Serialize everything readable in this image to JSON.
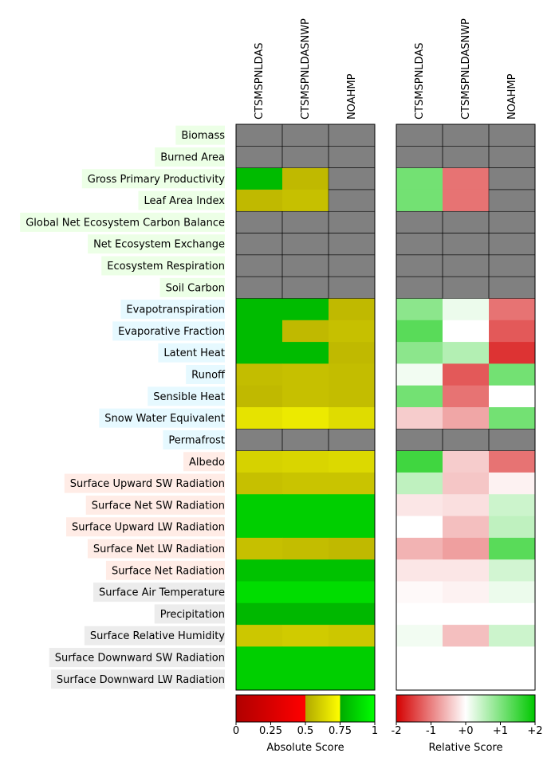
{
  "chart_data": {
    "type": "heatmap",
    "models": [
      "CTSMSPNLDAS",
      "CTSMSPNLDASNWP",
      "NOAHMP"
    ],
    "variables": [
      "Biomass",
      "Burned Area",
      "Gross Primary Productivity",
      "Leaf Area Index",
      "Global Net Ecosystem Carbon Balance",
      "Net Ecosystem Exchange",
      "Ecosystem Respiration",
      "Soil Carbon",
      "Evapotranspiration",
      "Evaporative Fraction",
      "Latent Heat",
      "Runoff",
      "Sensible Heat",
      "Snow Water Equivalent",
      "Permafrost",
      "Albedo",
      "Surface Upward SW Radiation",
      "Surface Net SW Radiation",
      "Surface Upward LW Radiation",
      "Surface Net LW Radiation",
      "Surface Net Radiation",
      "Surface Air Temperature",
      "Precipitation",
      "Surface Relative Humidity",
      "Surface Downward SW Radiation",
      "Surface Downward LW Radiation"
    ],
    "categories": [
      0,
      0,
      0,
      0,
      0,
      0,
      0,
      0,
      1,
      1,
      1,
      1,
      1,
      1,
      1,
      2,
      2,
      2,
      2,
      2,
      2,
      3,
      3,
      3,
      3,
      3
    ],
    "category_colors": [
      "#ecffe6",
      "#e6f9ff",
      "#ffece6",
      "#ececec"
    ],
    "missing_color": "#808080",
    "absolute_scores": [
      [
        null,
        null,
        null
      ],
      [
        null,
        null,
        null
      ],
      [
        0.8,
        0.55,
        null
      ],
      [
        0.55,
        0.57,
        null
      ],
      [
        null,
        null,
        null
      ],
      [
        null,
        null,
        null
      ],
      [
        null,
        null,
        null
      ],
      [
        null,
        null,
        null
      ],
      [
        0.8,
        0.8,
        0.55
      ],
      [
        0.8,
        0.55,
        0.57
      ],
      [
        0.8,
        0.8,
        0.55
      ],
      [
        0.56,
        0.57,
        0.56
      ],
      [
        0.55,
        0.57,
        0.56
      ],
      [
        0.67,
        0.69,
        0.65
      ],
      [
        null,
        null,
        null
      ],
      [
        0.62,
        0.63,
        0.64
      ],
      [
        0.57,
        0.58,
        0.58
      ],
      [
        0.86,
        0.86,
        0.86
      ],
      [
        0.86,
        0.86,
        0.86
      ],
      [
        0.57,
        0.56,
        0.55
      ],
      [
        0.82,
        0.82,
        0.82
      ],
      [
        0.9,
        0.9,
        0.9
      ],
      [
        0.79,
        0.79,
        0.79
      ],
      [
        0.59,
        0.6,
        0.59
      ],
      [
        0.86,
        0.86,
        0.86
      ],
      [
        0.86,
        0.86,
        0.86
      ]
    ],
    "relative_scores": [
      [
        null,
        null,
        null
      ],
      [
        null,
        null,
        null
      ],
      [
        1.1,
        -1.1,
        null
      ],
      [
        1.1,
        -1.1,
        null
      ],
      [
        null,
        null,
        null
      ],
      [
        null,
        null,
        null
      ],
      [
        null,
        null,
        null
      ],
      [
        null,
        null,
        null
      ],
      [
        0.9,
        0.15,
        -1.1
      ],
      [
        1.3,
        0.0,
        -1.3
      ],
      [
        0.9,
        0.6,
        -1.6
      ],
      [
        0.1,
        -1.3,
        1.1
      ],
      [
        1.1,
        -1.1,
        0.0
      ],
      [
        -0.4,
        -0.7,
        1.1
      ],
      [
        null,
        null,
        null
      ],
      [
        1.5,
        -0.4,
        -1.1
      ],
      [
        0.5,
        -0.45,
        -0.1
      ],
      [
        -0.2,
        -0.25,
        0.4
      ],
      [
        0.0,
        -0.5,
        0.5
      ],
      [
        -0.6,
        -0.75,
        1.3
      ],
      [
        -0.2,
        -0.2,
        0.35
      ],
      [
        -0.05,
        -0.1,
        0.15
      ],
      [
        0.0,
        0.0,
        0.0
      ],
      [
        0.1,
        -0.5,
        0.4
      ],
      [
        0.0,
        0.0,
        0.0
      ],
      [
        0.0,
        0.0,
        0.0
      ]
    ],
    "absolute_colorbar": {
      "label": "Absolute Score",
      "ticks": [
        "0",
        "0.25",
        "0.5",
        "0.75",
        "1"
      ],
      "range": [
        0,
        1
      ]
    },
    "relative_colorbar": {
      "label": "Relative Score",
      "ticks": [
        "-2",
        "-1",
        "+0",
        "+1",
        "+2"
      ],
      "range": [
        -2,
        2
      ]
    }
  }
}
